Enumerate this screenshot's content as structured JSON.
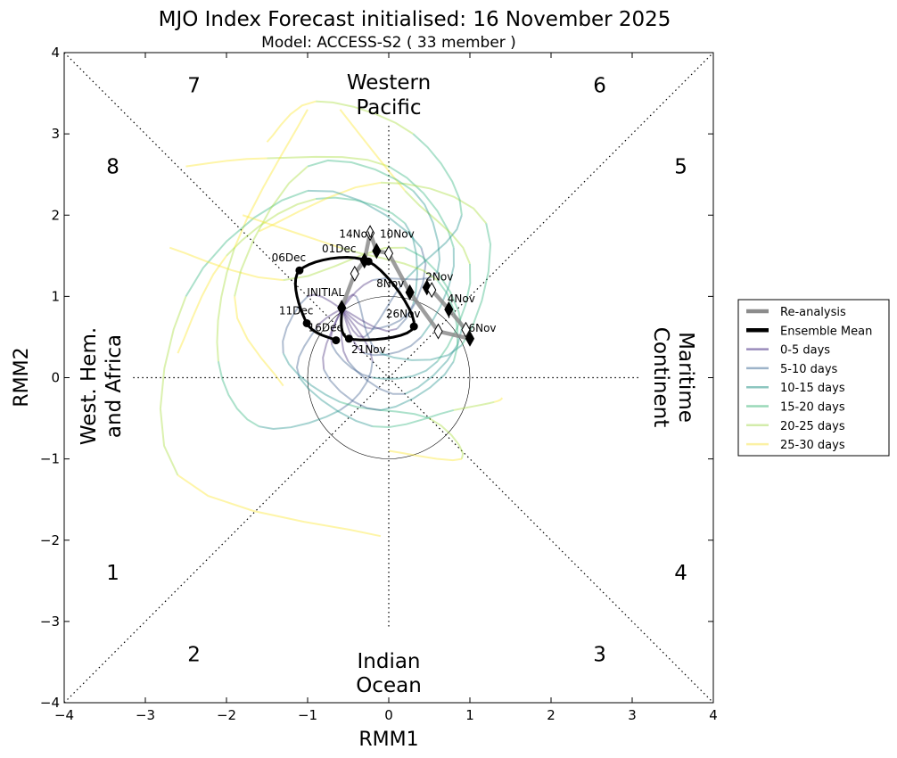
{
  "chart_data": {
    "type": "line",
    "title": "MJO Index Forecast initialised:  16  November 2025",
    "subtitle": "Model: ACCESS-S2 ( 33 member )",
    "xlabel": "RMM1",
    "ylabel": "RMM2",
    "xlim": [
      -4,
      4
    ],
    "ylim": [
      -4,
      4
    ],
    "xticks": [
      "−4",
      "−3",
      "−2",
      "−1",
      "0",
      "1",
      "2",
      "3",
      "4"
    ],
    "yticks": [
      "−4",
      "−3",
      "−2",
      "−1",
      "0",
      "1",
      "2",
      "3",
      "4"
    ],
    "phases": [
      {
        "label": "1",
        "x": -3.4,
        "y": -2.4
      },
      {
        "label": "2",
        "x": -2.4,
        "y": -3.4
      },
      {
        "label": "3",
        "x": 2.6,
        "y": -3.4
      },
      {
        "label": "4",
        "x": 3.6,
        "y": -2.4
      },
      {
        "label": "5",
        "x": 3.6,
        "y": 2.6
      },
      {
        "label": "6",
        "x": 2.6,
        "y": 3.6
      },
      {
        "label": "7",
        "x": -2.4,
        "y": 3.6
      },
      {
        "label": "8",
        "x": -3.4,
        "y": 2.6
      }
    ],
    "regions": {
      "top": [
        "Western",
        "Pacific"
      ],
      "bottom": [
        "Indian",
        "Ocean"
      ],
      "left": [
        "West. Hem.",
        "and Africa"
      ],
      "right": [
        "Maritime",
        "Continent"
      ]
    },
    "legend": {
      "placement": "outside-right",
      "entries": [
        {
          "label": "Re-analysis",
          "color": "#8c8c8c",
          "kind": "thick"
        },
        {
          "label": "Ensemble Mean",
          "color": "#000000",
          "kind": "thick"
        },
        {
          "label": "0-5 days",
          "color": "#9a8cbb",
          "kind": "thin"
        },
        {
          "label": "5-10 days",
          "color": "#9db3c9",
          "kind": "thin"
        },
        {
          "label": "10-15 days",
          "color": "#8cc6bf",
          "kind": "thin"
        },
        {
          "label": "15-20 days",
          "color": "#9ad9b9",
          "kind": "thin"
        },
        {
          "label": "20-25 days",
          "color": "#d3ecab",
          "kind": "thin"
        },
        {
          "label": "25-30 days",
          "color": "#fbf1a4",
          "kind": "thin"
        }
      ]
    },
    "lead_colors": [
      "#472c7a",
      "#3b5d8c",
      "#21918c",
      "#2fb47c",
      "#a5db36",
      "#fde725"
    ],
    "ensemble_mean": [
      {
        "label": "INITIAL",
        "x": -0.58,
        "y": 0.86
      },
      {
        "label": "21Nov",
        "x": -0.49,
        "y": 0.48
      },
      {
        "label": "26Nov",
        "x": 0.31,
        "y": 0.63
      },
      {
        "label": "01Dec",
        "x": -0.25,
        "y": 1.43
      },
      {
        "label": "06Dec",
        "x": -1.1,
        "y": 1.32
      },
      {
        "label": "11Dec",
        "x": -1.01,
        "y": 0.67
      },
      {
        "label": "16Dec",
        "x": -0.65,
        "y": 0.46
      }
    ],
    "reanalysis": [
      {
        "label": "2Nov",
        "x": 0.47,
        "y": 1.11,
        "filled": true
      },
      {
        "label": "",
        "x": 0.53,
        "y": 1.08,
        "filled": false
      },
      {
        "label": "4Nov",
        "x": 0.74,
        "y": 0.84,
        "filled": true
      },
      {
        "label": "",
        "x": 0.95,
        "y": 0.59,
        "filled": false
      },
      {
        "label": "6Nov",
        "x": 1.0,
        "y": 0.48,
        "filled": true
      },
      {
        "label": "",
        "x": 0.61,
        "y": 0.57,
        "filled": false
      },
      {
        "label": "8Nov",
        "x": 0.26,
        "y": 1.05,
        "filled": true
      },
      {
        "label": "",
        "x": 0.0,
        "y": 1.53,
        "filled": false
      },
      {
        "label": "10Nov",
        "x": -0.15,
        "y": 1.56,
        "filled": true
      },
      {
        "label": "",
        "x": -0.23,
        "y": 1.78,
        "filled": false
      },
      {
        "label": "14Nov",
        "x": -0.3,
        "y": 1.44,
        "filled": true
      },
      {
        "label": "",
        "x": -0.42,
        "y": 1.28,
        "filled": false
      },
      {
        "label": "",
        "x": -0.58,
        "y": 0.86,
        "filled": true
      }
    ],
    "members": [
      [
        [
          -0.58,
          0.85
        ],
        [
          -0.2,
          0.6
        ],
        [
          0.3,
          0.9
        ],
        [
          0.2,
          1.9
        ],
        [
          -0.9,
          2.2
        ],
        [
          -2.0,
          1.5
        ],
        [
          -2.6,
          0.3
        ]
      ],
      [
        [
          -0.58,
          0.85
        ],
        [
          -0.3,
          0.3
        ],
        [
          0.4,
          0.5
        ],
        [
          0.8,
          1.6
        ],
        [
          0.0,
          2.6
        ],
        [
          -1.5,
          2.7
        ],
        [
          -2.5,
          2.6
        ]
      ],
      [
        [
          -0.58,
          0.85
        ],
        [
          -0.7,
          0.4
        ],
        [
          -0.2,
          0.0
        ],
        [
          0.6,
          0.2
        ],
        [
          1.0,
          1.4
        ],
        [
          0.2,
          2.3
        ],
        [
          -0.6,
          3.3
        ]
      ],
      [
        [
          -0.58,
          0.85
        ],
        [
          -0.4,
          1.0
        ],
        [
          -0.1,
          0.3
        ],
        [
          0.9,
          0.4
        ],
        [
          1.2,
          1.9
        ],
        [
          -0.1,
          2.4
        ],
        [
          -1.6,
          1.8
        ]
      ],
      [
        [
          -0.58,
          0.85
        ],
        [
          -0.9,
          0.6
        ],
        [
          -1.1,
          0.0
        ],
        [
          -0.2,
          -0.6
        ],
        [
          0.8,
          -0.4
        ],
        [
          1.3,
          -0.3
        ],
        [
          1.4,
          -0.25
        ]
      ],
      [
        [
          -0.58,
          0.85
        ],
        [
          -0.2,
          0.2
        ],
        [
          -0.6,
          -0.4
        ],
        [
          -1.6,
          -0.6
        ],
        [
          -2.1,
          0.2
        ],
        [
          -1.9,
          1.6
        ],
        [
          -1.0,
          3.3
        ]
      ],
      [
        [
          -0.58,
          0.85
        ],
        [
          0.1,
          0.6
        ],
        [
          0.4,
          1.6
        ],
        [
          -1.0,
          2.3
        ],
        [
          -2.5,
          1.0
        ],
        [
          -2.6,
          -1.2
        ],
        [
          -0.1,
          -1.95
        ]
      ],
      [
        [
          -0.58,
          0.85
        ],
        [
          -0.3,
          0.5
        ],
        [
          0.2,
          1.2
        ],
        [
          0.9,
          2.0
        ],
        [
          0.3,
          3.0
        ],
        [
          -0.9,
          3.4
        ],
        [
          -1.5,
          2.9
        ]
      ],
      [
        [
          -0.58,
          0.85
        ],
        [
          -0.5,
          0.2
        ],
        [
          0.2,
          -0.2
        ],
        [
          0.9,
          0.6
        ],
        [
          0.2,
          1.6
        ],
        [
          -1.3,
          1.2
        ],
        [
          -2.7,
          1.6
        ]
      ],
      [
        [
          -0.58,
          0.85
        ],
        [
          -1.0,
          1.0
        ],
        [
          -1.3,
          0.3
        ],
        [
          -0.6,
          -0.3
        ],
        [
          0.5,
          -0.5
        ],
        [
          0.9,
          -1.0
        ],
        [
          0.0,
          -0.9
        ]
      ],
      [
        [
          -0.58,
          0.85
        ],
        [
          -0.2,
          1.2
        ],
        [
          0.6,
          1.3
        ],
        [
          0.3,
          2.3
        ],
        [
          -1.0,
          2.6
        ],
        [
          -1.9,
          1.0
        ],
        [
          -1.3,
          -0.1
        ]
      ],
      [
        [
          -0.58,
          0.85
        ],
        [
          -0.8,
          0.1
        ],
        [
          -0.1,
          -0.4
        ],
        [
          0.8,
          0.2
        ],
        [
          0.6,
          1.2
        ],
        [
          -0.6,
          1.6
        ],
        [
          -1.8,
          2.0
        ]
      ]
    ]
  }
}
